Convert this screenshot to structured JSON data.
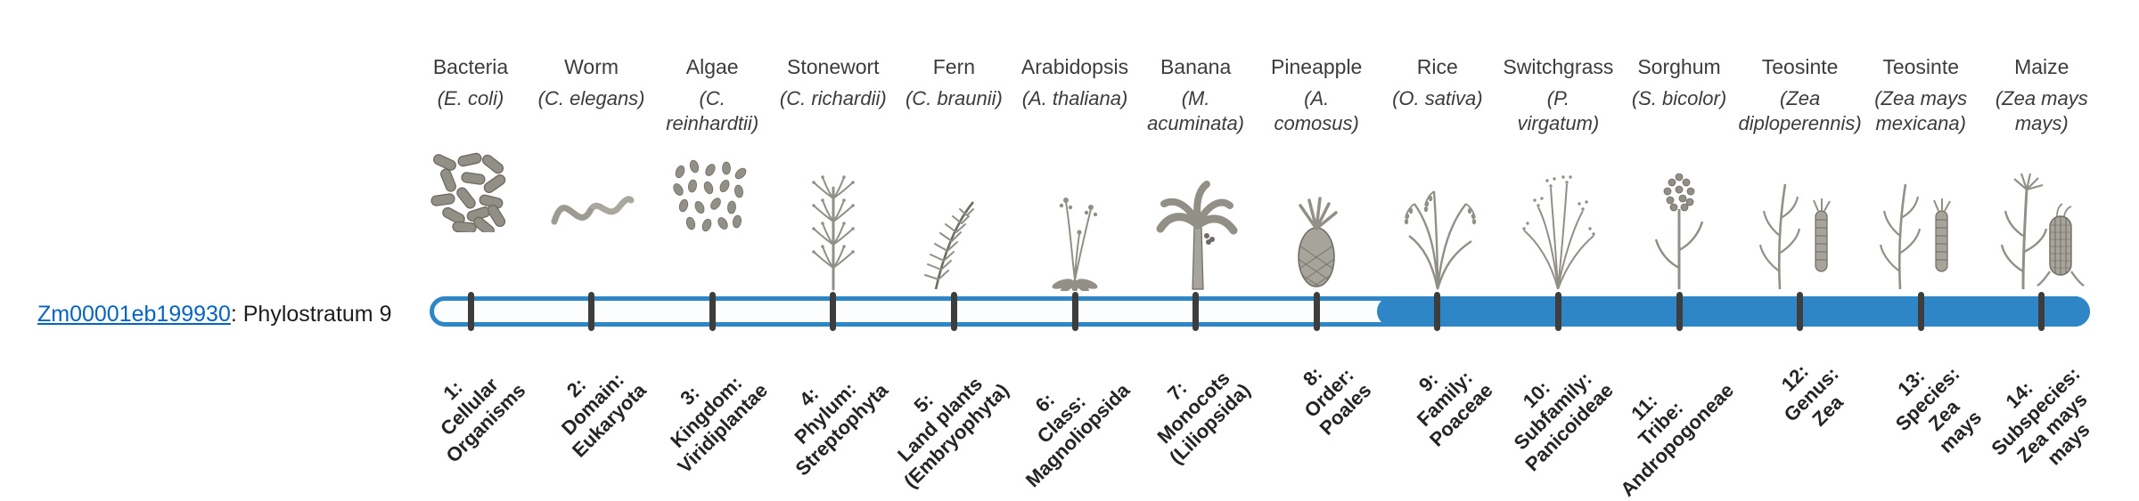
{
  "gene": {
    "id": "Zm00001eb199930",
    "suffix": ": Phylostratum 9",
    "phylostratum": 9
  },
  "timeline": {
    "bar_color": "#2e86c6",
    "tick_color": "#3d3d3d",
    "link_color": "#0563C1",
    "unfilled_color": "#fbfdff",
    "filled_from_stratum": 9,
    "total_strata": 14
  },
  "strata": [
    {
      "index": 1,
      "organism": "Bacteria",
      "scientific": "(E. coli)",
      "icon": "bacteria-icon",
      "tick_label": "1:\nCellular\nOrganisms"
    },
    {
      "index": 2,
      "organism": "Worm",
      "scientific": "(C. elegans)",
      "icon": "worm-icon",
      "tick_label": "2:\nDomain:\nEukaryota"
    },
    {
      "index": 3,
      "organism": "Algae",
      "scientific": "(C.\nreinhardtii)",
      "icon": "algae-icon",
      "tick_label": "3:\nKingdom:\nViridiplantae"
    },
    {
      "index": 4,
      "organism": "Stonewort",
      "scientific": "(C. richardii)",
      "icon": "stonewort-icon",
      "tick_label": "4:\nPhylum:\nStreptophyta"
    },
    {
      "index": 5,
      "organism": "Fern",
      "scientific": "(C. braunii)",
      "icon": "fern-icon",
      "tick_label": "5:\nLand plants\n(Embryophyta)"
    },
    {
      "index": 6,
      "organism": "Arabidopsis",
      "scientific": "(A. thaliana)",
      "icon": "arabidopsis-icon",
      "tick_label": "6:\nClass:\nMagnoliopsida"
    },
    {
      "index": 7,
      "organism": "Banana",
      "scientific": "(M.\nacuminata)",
      "icon": "banana-icon",
      "tick_label": "7:\nMonocots\n(Liliopsida)"
    },
    {
      "index": 8,
      "organism": "Pineapple",
      "scientific": "(A.\ncomosus)",
      "icon": "pineapple-icon",
      "tick_label": "8:\nOrder:\nPoales"
    },
    {
      "index": 9,
      "organism": "Rice",
      "scientific": "(O. sativa)",
      "icon": "rice-icon",
      "tick_label": "9:\nFamily:\nPoaceae"
    },
    {
      "index": 10,
      "organism": "Switchgrass",
      "scientific": "(P.\nvirgatum)",
      "icon": "switchgrass-icon",
      "tick_label": "10:\nSubfamily:\nPanicoideae"
    },
    {
      "index": 11,
      "organism": "Sorghum",
      "scientific": "(S. bicolor)",
      "icon": "sorghum-icon",
      "tick_label": "11:\nTribe:\nAndropogoneae"
    },
    {
      "index": 12,
      "organism": "Teosinte",
      "scientific": "(Zea\ndiploperennis)",
      "icon": "teosinte-icon",
      "tick_label": "12:\nGenus:\nZea"
    },
    {
      "index": 13,
      "organism": "Teosinte",
      "scientific": "(Zea mays\nmexicana)",
      "icon": "teosinte-icon",
      "tick_label": "13:\nSpecies:\nZea\nmays"
    },
    {
      "index": 14,
      "organism": "Maize",
      "scientific": "(Zea mays\nmays)",
      "icon": "maize-icon",
      "tick_label": "14:\nSubspecies:\nZea mays\nmays"
    }
  ]
}
